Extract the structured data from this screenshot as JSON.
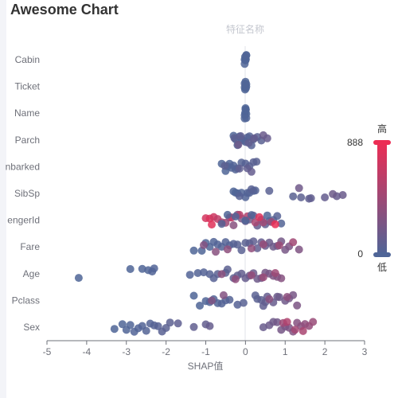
{
  "title": "Awesome Chart",
  "chart_data": {
    "type": "scatter",
    "title": "Awesome Chart",
    "xlabel": "SHAP值",
    "ylabel": "特征名称",
    "xlim": [
      -5,
      3
    ],
    "x_ticks": [
      -5,
      -4,
      -3,
      -2,
      -1,
      0,
      1,
      2,
      3
    ],
    "categories": [
      "Sex",
      "Pclass",
      "Age",
      "Fare",
      "PassengerId",
      "SibSp",
      "Embarked",
      "Parch",
      "Name",
      "Ticket",
      "Cabin"
    ],
    "category_labels": [
      "Sex",
      "Pclass",
      "Age",
      "Fare",
      "engerId",
      "SibSp",
      "nbarked",
      "Parch",
      "Name",
      "Ticket",
      "Cabin"
    ],
    "visual_map": {
      "min": 0,
      "max": 888,
      "high_label": "高",
      "low_label": "低",
      "low_color": "#4f6597",
      "high_color": "#ec2d54"
    },
    "grid": false,
    "series": [
      {
        "category": "Cabin",
        "values": [
          [
            -0.02,
            10
          ],
          [
            0,
            20
          ],
          [
            0.02,
            30
          ],
          [
            -0.01,
            40
          ],
          [
            0.01,
            50
          ],
          [
            0,
            60
          ],
          [
            0.02,
            70
          ],
          [
            -0.02,
            80
          ]
        ]
      },
      {
        "category": "Ticket",
        "values": [
          [
            -0.02,
            10
          ],
          [
            0,
            20
          ],
          [
            0.02,
            30
          ],
          [
            -0.01,
            40
          ],
          [
            0.01,
            50
          ],
          [
            0,
            60
          ],
          [
            0.02,
            70
          ],
          [
            -0.02,
            80
          ]
        ]
      },
      {
        "category": "Name",
        "values": [
          [
            -0.02,
            10
          ],
          [
            0,
            20
          ],
          [
            0.02,
            30
          ],
          [
            -0.01,
            40
          ],
          [
            0.01,
            50
          ],
          [
            0,
            60
          ],
          [
            0.02,
            70
          ],
          [
            -0.02,
            80
          ]
        ]
      },
      {
        "category": "Parch",
        "values": [
          [
            -0.3,
            40
          ],
          [
            -0.25,
            60
          ],
          [
            -0.2,
            80
          ],
          [
            -0.15,
            100
          ],
          [
            -0.1,
            120
          ],
          [
            -0.05,
            140
          ],
          [
            0,
            160
          ],
          [
            0.05,
            180
          ],
          [
            0.1,
            200
          ],
          [
            0.15,
            220
          ],
          [
            0.2,
            240
          ],
          [
            0.3,
            260
          ],
          [
            0.4,
            280
          ],
          [
            -0.28,
            300
          ],
          [
            -0.12,
            320
          ],
          [
            0.08,
            340
          ],
          [
            0.22,
            360
          ],
          [
            0.55,
            380
          ],
          [
            0.45,
            400
          ],
          [
            -0.18,
            420
          ]
        ]
      },
      {
        "category": "Embarked",
        "values": [
          [
            -0.6,
            40
          ],
          [
            -0.5,
            60
          ],
          [
            -0.45,
            80
          ],
          [
            -0.4,
            100
          ],
          [
            -0.35,
            120
          ],
          [
            -0.3,
            140
          ],
          [
            -0.25,
            160
          ],
          [
            -0.2,
            180
          ],
          [
            -0.1,
            200
          ],
          [
            0,
            220
          ],
          [
            0.1,
            240
          ],
          [
            0.2,
            260
          ],
          [
            0.28,
            280
          ],
          [
            -0.52,
            300
          ],
          [
            -0.15,
            320
          ],
          [
            0.05,
            340
          ],
          [
            0.15,
            360
          ]
        ]
      },
      {
        "category": "SibSp",
        "values": [
          [
            -0.3,
            40
          ],
          [
            -0.25,
            60
          ],
          [
            -0.2,
            80
          ],
          [
            -0.1,
            100
          ],
          [
            0,
            120
          ],
          [
            0.05,
            140
          ],
          [
            0.1,
            160
          ],
          [
            0.2,
            180
          ],
          [
            0.25,
            200
          ],
          [
            -0.15,
            220
          ],
          [
            0.15,
            240
          ],
          [
            0.6,
            260
          ],
          [
            1.2,
            280
          ],
          [
            1.4,
            300
          ],
          [
            1.6,
            320
          ],
          [
            1.65,
            340
          ],
          [
            2.0,
            360
          ],
          [
            2.3,
            380
          ],
          [
            2.45,
            400
          ],
          [
            2.2,
            420
          ],
          [
            1.35,
            440
          ]
        ]
      },
      {
        "category": "PassengerId",
        "values": [
          [
            -1.0,
            820
          ],
          [
            -0.9,
            840
          ],
          [
            -0.8,
            800
          ],
          [
            -0.7,
            760
          ],
          [
            -0.6,
            700
          ],
          [
            -0.5,
            650
          ],
          [
            -0.4,
            600
          ],
          [
            -0.3,
            560
          ],
          [
            -0.2,
            520
          ],
          [
            -0.1,
            480
          ],
          [
            0,
            450
          ],
          [
            0.1,
            420
          ],
          [
            0.2,
            390
          ],
          [
            0.3,
            360
          ],
          [
            0.4,
            340
          ],
          [
            0.5,
            320
          ],
          [
            0.6,
            300
          ],
          [
            0.7,
            280
          ],
          [
            0.8,
            220
          ],
          [
            0.9,
            160
          ],
          [
            -0.85,
            860
          ],
          [
            -0.35,
            780
          ],
          [
            -0.15,
            740
          ],
          [
            0.05,
            720
          ],
          [
            0.25,
            690
          ],
          [
            0.45,
            660
          ],
          [
            0.65,
            630
          ],
          [
            0.75,
            880
          ],
          [
            0.35,
            850
          ],
          [
            -0.6,
            200
          ],
          [
            -0.25,
            150
          ],
          [
            0.15,
            110
          ],
          [
            0.55,
            80
          ],
          [
            -0.45,
            60
          ],
          [
            0,
            30
          ]
        ]
      },
      {
        "category": "Fare",
        "values": [
          [
            -1.3,
            40
          ],
          [
            -1.1,
            60
          ],
          [
            -1.0,
            80
          ],
          [
            -0.9,
            100
          ],
          [
            -0.8,
            120
          ],
          [
            -0.7,
            140
          ],
          [
            -0.6,
            160
          ],
          [
            -0.5,
            180
          ],
          [
            -0.4,
            200
          ],
          [
            -0.3,
            220
          ],
          [
            -0.2,
            240
          ],
          [
            -0.1,
            260
          ],
          [
            0,
            280
          ],
          [
            0.1,
            300
          ],
          [
            0.2,
            320
          ],
          [
            0.3,
            340
          ],
          [
            0.4,
            360
          ],
          [
            0.5,
            380
          ],
          [
            0.6,
            400
          ],
          [
            0.7,
            420
          ],
          [
            0.8,
            440
          ],
          [
            0.9,
            460
          ],
          [
            1.0,
            480
          ],
          [
            1.1,
            500
          ],
          [
            1.35,
            520
          ],
          [
            -1.05,
            540
          ],
          [
            -0.75,
            560
          ],
          [
            -0.45,
            580
          ],
          [
            0.15,
            600
          ],
          [
            0.45,
            620
          ],
          [
            0.85,
            640
          ],
          [
            1.2,
            660
          ]
        ]
      },
      {
        "category": "Age",
        "values": [
          [
            -4.2,
            30
          ],
          [
            -2.9,
            50
          ],
          [
            -2.6,
            70
          ],
          [
            -2.45,
            90
          ],
          [
            -2.35,
            110
          ],
          [
            -2.3,
            130
          ],
          [
            -1.4,
            150
          ],
          [
            -1.2,
            170
          ],
          [
            -1.05,
            190
          ],
          [
            -0.9,
            210
          ],
          [
            -0.8,
            230
          ],
          [
            -0.7,
            250
          ],
          [
            -0.5,
            270
          ],
          [
            -0.45,
            290
          ],
          [
            -0.3,
            310
          ],
          [
            -0.2,
            330
          ],
          [
            -0.1,
            350
          ],
          [
            0,
            370
          ],
          [
            0.1,
            390
          ],
          [
            0.2,
            410
          ],
          [
            0.3,
            430
          ],
          [
            0.4,
            450
          ],
          [
            0.5,
            470
          ],
          [
            0.6,
            490
          ],
          [
            0.7,
            510
          ],
          [
            0.8,
            530
          ],
          [
            0.9,
            550
          ],
          [
            -0.6,
            570
          ],
          [
            -0.25,
            590
          ],
          [
            0.15,
            610
          ],
          [
            0.45,
            630
          ],
          [
            0.75,
            650
          ]
        ]
      },
      {
        "category": "Pclass",
        "values": [
          [
            -1.3,
            40
          ],
          [
            -1.15,
            60
          ],
          [
            -1.0,
            80
          ],
          [
            -0.9,
            100
          ],
          [
            -0.8,
            120
          ],
          [
            -0.7,
            140
          ],
          [
            -0.6,
            160
          ],
          [
            -0.5,
            180
          ],
          [
            -0.4,
            200
          ],
          [
            -0.2,
            220
          ],
          [
            -0.05,
            240
          ],
          [
            0.25,
            260
          ],
          [
            0.3,
            280
          ],
          [
            0.4,
            300
          ],
          [
            0.45,
            320
          ],
          [
            0.5,
            340
          ],
          [
            0.55,
            360
          ],
          [
            0.7,
            380
          ],
          [
            0.8,
            400
          ],
          [
            0.85,
            420
          ],
          [
            1.0,
            440
          ],
          [
            1.1,
            460
          ],
          [
            1.2,
            480
          ],
          [
            1.3,
            500
          ],
          [
            -0.85,
            520
          ],
          [
            -0.55,
            540
          ],
          [
            0.6,
            560
          ],
          [
            1.05,
            580
          ]
        ]
      },
      {
        "category": "Sex",
        "values": [
          [
            -3.3,
            30
          ],
          [
            -3.1,
            50
          ],
          [
            -3.0,
            70
          ],
          [
            -2.9,
            90
          ],
          [
            -2.8,
            110
          ],
          [
            -2.7,
            130
          ],
          [
            -2.6,
            150
          ],
          [
            -2.5,
            170
          ],
          [
            -2.4,
            190
          ],
          [
            -2.3,
            210
          ],
          [
            -2.2,
            230
          ],
          [
            -2.1,
            250
          ],
          [
            -2.0,
            270
          ],
          [
            -1.9,
            290
          ],
          [
            -1.7,
            310
          ],
          [
            -1.3,
            330
          ],
          [
            -1.0,
            350
          ],
          [
            -0.9,
            370
          ],
          [
            0.45,
            390
          ],
          [
            0.6,
            410
          ],
          [
            0.7,
            430
          ],
          [
            0.8,
            450
          ],
          [
            0.9,
            470
          ],
          [
            1.0,
            490
          ],
          [
            1.1,
            510
          ],
          [
            1.2,
            530
          ],
          [
            1.3,
            550
          ],
          [
            1.4,
            570
          ],
          [
            1.5,
            590
          ],
          [
            1.6,
            610
          ],
          [
            1.7,
            630
          ],
          [
            0.95,
            650
          ],
          [
            1.25,
            670
          ],
          [
            1.45,
            690
          ],
          [
            1.05,
            710
          ]
        ]
      }
    ]
  }
}
